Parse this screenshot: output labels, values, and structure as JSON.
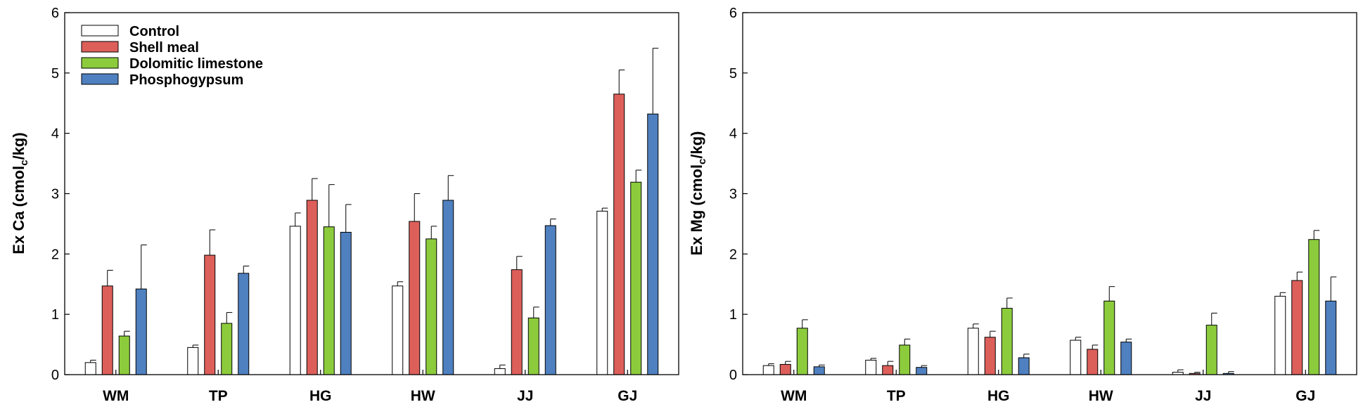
{
  "chart_data": [
    {
      "type": "bar",
      "ylabel": "Ex Ca (cmol",
      "ylabel_sub": "c",
      "ylabel_end": "/kg)",
      "xlabel": "",
      "ylim": [
        0,
        6
      ],
      "yticks": [
        "0",
        "1",
        "2",
        "3",
        "4",
        "5",
        "6"
      ],
      "categories": [
        "WM",
        "TP",
        "HG",
        "HW",
        "JJ",
        "GJ"
      ],
      "legend_position": "top-left",
      "series": [
        {
          "name": "Control",
          "color": "#ffffff",
          "values": [
            0.2,
            0.45,
            2.46,
            1.47,
            0.1,
            2.71
          ],
          "errors": [
            0.04,
            0.04,
            0.22,
            0.07,
            0.06,
            0.05
          ]
        },
        {
          "name": "Shell meal",
          "color": "#dd5f5a",
          "values": [
            1.47,
            1.98,
            2.89,
            2.54,
            1.74,
            4.65
          ],
          "errors": [
            0.26,
            0.42,
            0.36,
            0.46,
            0.22,
            0.4
          ]
        },
        {
          "name": "Dolomitic limestone",
          "color": "#8ccc3c",
          "values": [
            0.64,
            0.85,
            2.45,
            2.25,
            0.94,
            3.19
          ],
          "errors": [
            0.08,
            0.18,
            0.7,
            0.21,
            0.18,
            0.2
          ]
        },
        {
          "name": "Phosphogypsum",
          "color": "#4f80c0",
          "values": [
            1.42,
            1.68,
            2.36,
            2.89,
            2.47,
            4.32
          ],
          "errors": [
            0.73,
            0.12,
            0.46,
            0.41,
            0.11,
            1.09
          ]
        }
      ]
    },
    {
      "type": "bar",
      "ylabel": "Ex Mg (cmol",
      "ylabel_sub": "c",
      "ylabel_end": "/kg)",
      "xlabel": "",
      "ylim": [
        0,
        6
      ],
      "yticks": [
        "0",
        "1",
        "2",
        "3",
        "4",
        "5",
        "6"
      ],
      "categories": [
        "WM",
        "TP",
        "HG",
        "HW",
        "JJ",
        "GJ"
      ],
      "series": [
        {
          "name": "Control",
          "color": "#ffffff",
          "values": [
            0.15,
            0.24,
            0.77,
            0.57,
            0.04,
            1.3
          ],
          "errors": [
            0.03,
            0.03,
            0.07,
            0.05,
            0.04,
            0.06
          ]
        },
        {
          "name": "Shell meal",
          "color": "#dd5f5a",
          "values": [
            0.17,
            0.15,
            0.62,
            0.42,
            0.02,
            1.56
          ],
          "errors": [
            0.05,
            0.07,
            0.1,
            0.07,
            0.02,
            0.14
          ]
        },
        {
          "name": "Dolomitic limestone",
          "color": "#8ccc3c",
          "values": [
            0.77,
            0.49,
            1.1,
            1.22,
            0.82,
            2.24
          ],
          "errors": [
            0.14,
            0.1,
            0.17,
            0.24,
            0.2,
            0.15
          ]
        },
        {
          "name": "Phosphogypsum",
          "color": "#4f80c0",
          "values": [
            0.13,
            0.12,
            0.28,
            0.54,
            0.02,
            1.22
          ],
          "errors": [
            0.03,
            0.03,
            0.06,
            0.05,
            0.03,
            0.4
          ]
        }
      ]
    }
  ]
}
